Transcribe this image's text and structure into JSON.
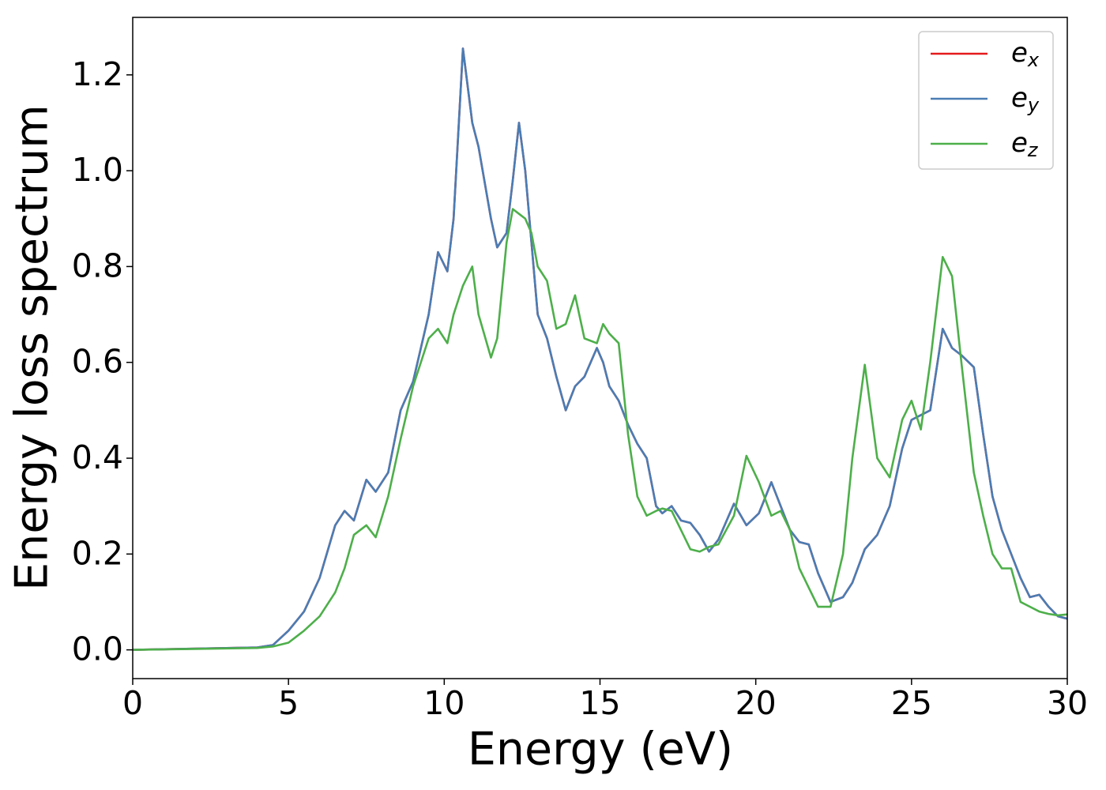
{
  "chart_data": {
    "type": "line",
    "xlabel": "Energy (eV)",
    "ylabel": "Energy loss spectrum",
    "x": [
      0,
      4,
      4.5,
      5,
      5.5,
      6,
      6.5,
      6.8,
      7.1,
      7.5,
      7.8,
      8.2,
      8.6,
      9,
      9.5,
      9.8,
      10.1,
      10.3,
      10.6,
      10.9,
      11.1,
      11.5,
      11.7,
      12,
      12.2,
      12.4,
      12.6,
      12.8,
      13,
      13.3,
      13.6,
      13.9,
      14.2,
      14.5,
      14.9,
      15.1,
      15.3,
      15.6,
      15.9,
      16.2,
      16.5,
      16.8,
      17,
      17.3,
      17.6,
      17.9,
      18.2,
      18.5,
      18.8,
      19.3,
      19.7,
      20.1,
      20.5,
      20.8,
      21.1,
      21.4,
      21.7,
      22,
      22.4,
      22.8,
      23.1,
      23.5,
      23.9,
      24.3,
      24.7,
      25,
      25.3,
      25.6,
      26,
      26.3,
      26.6,
      27,
      27.3,
      27.6,
      27.9,
      28.2,
      28.5,
      28.8,
      29.1,
      29.4,
      29.7,
      30
    ],
    "series": [
      {
        "name": "e_x",
        "color": "#e41a1c",
        "values": [
          0,
          0.005,
          0.01,
          0.04,
          0.08,
          0.15,
          0.26,
          0.29,
          0.27,
          0.355,
          0.33,
          0.37,
          0.5,
          0.56,
          0.7,
          0.83,
          0.79,
          0.9,
          1.255,
          1.1,
          1.05,
          0.9,
          0.84,
          0.87,
          0.98,
          1.1,
          1.0,
          0.85,
          0.7,
          0.65,
          0.57,
          0.5,
          0.55,
          0.57,
          0.63,
          0.6,
          0.55,
          0.52,
          0.47,
          0.43,
          0.4,
          0.3,
          0.285,
          0.3,
          0.27,
          0.265,
          0.24,
          0.205,
          0.23,
          0.305,
          0.26,
          0.285,
          0.35,
          0.3,
          0.25,
          0.225,
          0.22,
          0.16,
          0.1,
          0.11,
          0.14,
          0.21,
          0.24,
          0.3,
          0.42,
          0.48,
          0.49,
          0.5,
          0.67,
          0.63,
          0.615,
          0.59,
          0.45,
          0.32,
          0.25,
          0.2,
          0.15,
          0.11,
          0.115,
          0.09,
          0.07,
          0.065
        ]
      },
      {
        "name": "e_y",
        "color": "#4a7db4",
        "values": [
          0,
          0.005,
          0.01,
          0.04,
          0.08,
          0.15,
          0.26,
          0.29,
          0.27,
          0.355,
          0.33,
          0.37,
          0.5,
          0.56,
          0.7,
          0.83,
          0.79,
          0.9,
          1.255,
          1.1,
          1.05,
          0.9,
          0.84,
          0.87,
          0.98,
          1.1,
          1.0,
          0.85,
          0.7,
          0.65,
          0.57,
          0.5,
          0.55,
          0.57,
          0.63,
          0.6,
          0.55,
          0.52,
          0.47,
          0.43,
          0.4,
          0.3,
          0.285,
          0.3,
          0.27,
          0.265,
          0.24,
          0.205,
          0.23,
          0.305,
          0.26,
          0.285,
          0.35,
          0.3,
          0.25,
          0.225,
          0.22,
          0.16,
          0.1,
          0.11,
          0.14,
          0.21,
          0.24,
          0.3,
          0.42,
          0.48,
          0.49,
          0.5,
          0.67,
          0.63,
          0.615,
          0.59,
          0.45,
          0.32,
          0.25,
          0.2,
          0.15,
          0.11,
          0.115,
          0.09,
          0.07,
          0.065
        ]
      },
      {
        "name": "e_z",
        "color": "#4daf4a",
        "values": [
          0,
          0.004,
          0.007,
          0.015,
          0.04,
          0.07,
          0.12,
          0.17,
          0.24,
          0.26,
          0.235,
          0.32,
          0.44,
          0.55,
          0.65,
          0.67,
          0.64,
          0.7,
          0.76,
          0.8,
          0.7,
          0.61,
          0.65,
          0.85,
          0.92,
          0.91,
          0.9,
          0.87,
          0.8,
          0.77,
          0.67,
          0.68,
          0.74,
          0.65,
          0.64,
          0.68,
          0.66,
          0.64,
          0.45,
          0.32,
          0.28,
          0.29,
          0.295,
          0.29,
          0.25,
          0.21,
          0.205,
          0.215,
          0.22,
          0.28,
          0.405,
          0.35,
          0.28,
          0.29,
          0.25,
          0.17,
          0.13,
          0.09,
          0.09,
          0.2,
          0.4,
          0.595,
          0.4,
          0.36,
          0.48,
          0.52,
          0.46,
          0.6,
          0.82,
          0.78,
          0.6,
          0.37,
          0.28,
          0.2,
          0.17,
          0.17,
          0.1,
          0.09,
          0.08,
          0.075,
          0.072,
          0.074
        ]
      }
    ],
    "xlim": [
      0,
      30
    ],
    "xticks": [
      0,
      5,
      10,
      15,
      20,
      25,
      30
    ],
    "ylim": [
      -0.06,
      1.32
    ],
    "yticks": [
      {
        "value": 0,
        "label": "0.0"
      },
      0.2,
      0.4,
      0.6,
      0.8,
      {
        "value": 1,
        "label": "1.0"
      },
      1.2
    ],
    "legend": "upper right"
  }
}
